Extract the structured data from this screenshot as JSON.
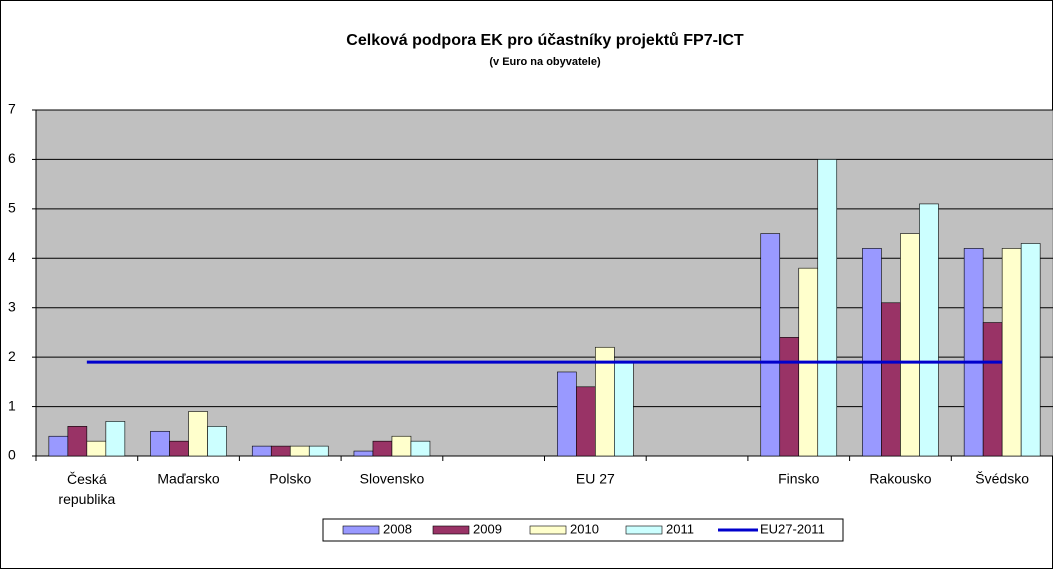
{
  "chart_data": {
    "type": "bar",
    "title": "Celková podpora EK pro účastníky projektů FP7-ICT",
    "subtitle": "(v Euro na obyvatele)",
    "categories": [
      "Česká republika",
      "Maďarsko",
      "Polsko",
      "Slovensko",
      null,
      "EU 27",
      null,
      "Finsko",
      "Rakousko",
      "Švédsko"
    ],
    "series": [
      {
        "name": "2008",
        "color": "#9999ff",
        "values": [
          0.4,
          0.5,
          0.2,
          0.1,
          null,
          1.7,
          null,
          4.5,
          4.2,
          4.2
        ]
      },
      {
        "name": "2009",
        "color": "#993366",
        "values": [
          0.6,
          0.3,
          0.2,
          0.3,
          null,
          1.4,
          null,
          2.4,
          3.1,
          2.7
        ]
      },
      {
        "name": "2010",
        "color": "#ffffcc",
        "values": [
          0.3,
          0.9,
          0.2,
          0.4,
          null,
          2.2,
          null,
          3.8,
          4.5,
          4.2
        ]
      },
      {
        "name": "2011",
        "color": "#ccffff",
        "values": [
          0.7,
          0.6,
          0.2,
          0.3,
          null,
          1.9,
          null,
          6.0,
          5.1,
          4.3
        ]
      },
      {
        "name": "EU27-2011",
        "type": "line",
        "color": "#0000cc",
        "values": [
          1.9,
          1.9,
          1.9,
          1.9,
          1.9,
          1.9,
          1.9,
          1.9,
          1.9,
          1.9
        ]
      }
    ],
    "ylim": [
      0,
      7
    ],
    "yticks": [
      0,
      1,
      2,
      3,
      4,
      5,
      6,
      7
    ],
    "grid": true,
    "legend": "bottom"
  }
}
